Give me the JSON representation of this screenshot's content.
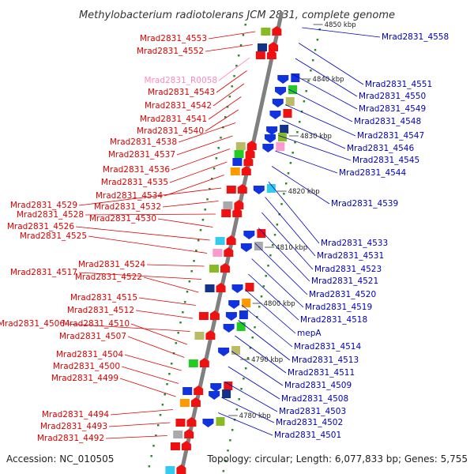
{
  "title": "Methylobacterium radiotolerans JCM 2831, complete genome",
  "footer": {
    "accession": "Accession: NC_010505",
    "topology": "Topology: circular; Length: 6,077,833 bp; Genes: 5,755"
  },
  "colors": {
    "left_label": "#dd0000",
    "right_label": "#0000bb",
    "rna_label": "#ff88bb",
    "backbone": "#808080",
    "tick": "#2a8a2a"
  },
  "kbp_ticks": [
    "4850 kbp",
    "4840 kbp",
    "4830 kbp",
    "4820 kbp",
    "4810 kbp",
    "4800 kbp",
    "4790 kbp",
    "4780 kbp"
  ],
  "left_labels": [
    "Mrad2831_4553",
    "Mrad2831_4552",
    "Mrad2831_R0058",
    "Mrad2831_4543",
    "Mrad2831_4542",
    "Mrad2831_4541",
    "Mrad2831_4540",
    "Mrad2831_4538",
    "Mrad2831_4537",
    "Mrad2831_4536",
    "Mrad2831_4535",
    "Mrad2831_4534",
    "Mrad2831_4529",
    "Mrad2831_4532",
    "Mrad2831_4528",
    "Mrad2831_4530",
    "Mrad2831_4526",
    "Mrad2831_4525",
    "Mrad2831_4524",
    "Mrad2831_4517",
    "Mrad2831_4522",
    "Mrad2831_4515",
    "Mrad2831_4512",
    "Mrad2831_4506",
    "Mrad2831_4510",
    "Mrad2831_4507",
    "Mrad2831_4504",
    "Mrad2831_4500",
    "Mrad2831_4499",
    "Mrad2831_4494",
    "Mrad2831_4493",
    "Mrad2831_4492"
  ],
  "right_labels": [
    "Mrad2831_4558",
    "Mrad2831_4551",
    "Mrad2831_4550",
    "Mrad2831_4549",
    "Mrad2831_4548",
    "Mrad2831_4547",
    "Mrad2831_4546",
    "Mrad2831_4545",
    "Mrad2831_4544",
    "Mrad2831_4539",
    "Mrad2831_4533",
    "Mrad2831_4531",
    "Mrad2831_4523",
    "Mrad2831_4521",
    "Mrad2831_4520",
    "Mrad2831_4519",
    "Mrad2831_4518",
    "mepA",
    "Mrad2831_4514",
    "Mrad2831_4513",
    "Mrad2831_4511",
    "Mrad2831_4509",
    "Mrad2831_4508",
    "Mrad2831_4503",
    "Mrad2831_4502",
    "Mrad2831_4501"
  ]
}
